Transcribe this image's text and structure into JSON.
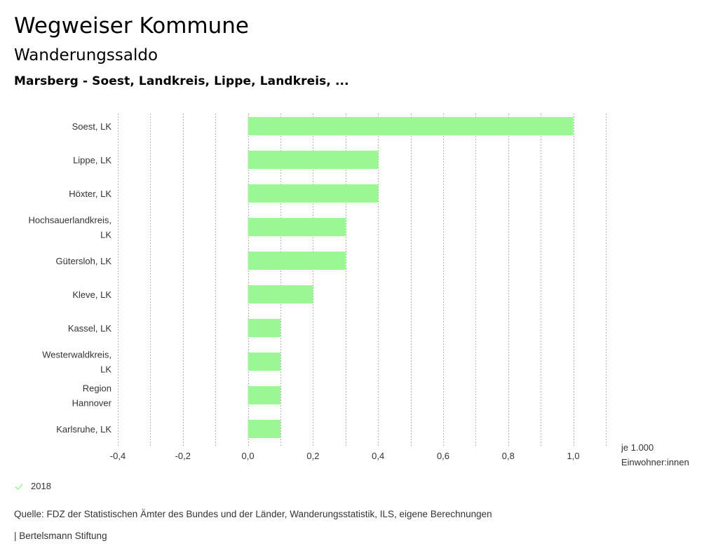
{
  "header": {
    "title": "Wegweiser Kommune",
    "subtitle": "Wanderungssaldo",
    "selection": "Marsberg - Soest, Landkreis, Lippe, Landkreis, ..."
  },
  "chart_data": {
    "type": "bar",
    "orientation": "horizontal",
    "title": "Wanderungssaldo",
    "categories": [
      [
        "Soest, LK"
      ],
      [
        "Lippe, LK"
      ],
      [
        "Höxter, LK"
      ],
      [
        "Hochsauerlandkreis,",
        "LK"
      ],
      [
        "Gütersloh, LK"
      ],
      [
        "Kleve, LK"
      ],
      [
        "Kassel, LK"
      ],
      [
        "Westerwaldkreis,",
        "LK"
      ],
      [
        "Region",
        "Hannover"
      ],
      [
        "Karlsruhe, LK"
      ]
    ],
    "series": [
      {
        "name": "2018",
        "color": "#9af794",
        "values": [
          1.0,
          0.4,
          0.4,
          0.3,
          0.3,
          0.2,
          0.1,
          0.1,
          0.1,
          0.1
        ]
      }
    ],
    "xlim": [
      -0.4,
      1.1
    ],
    "xticks": [
      -0.4,
      -0.2,
      0.0,
      0.2,
      0.4,
      0.6,
      0.8,
      1.0
    ],
    "xtick_labels": [
      "-0,4",
      "-0,2",
      "0,0",
      "0,2",
      "0,4",
      "0,6",
      "0,8",
      "1,0"
    ],
    "grid_step": 0.1,
    "grid": true,
    "xlabel": [
      "je 1.000",
      "Einwohner:innen"
    ],
    "ylabel": "",
    "legend_position": "bottom-left",
    "grid_color": "#b3b3b3"
  },
  "legend": {
    "label": "2018",
    "icon": "check-icon",
    "color": "#9af794"
  },
  "footer": {
    "source": "Quelle: FDZ der Statistischen Ämter des Bundes und der Länder, Wanderungsstatistik, ILS, eigene Berechnungen",
    "credit": "| Bertelsmann Stiftung"
  }
}
